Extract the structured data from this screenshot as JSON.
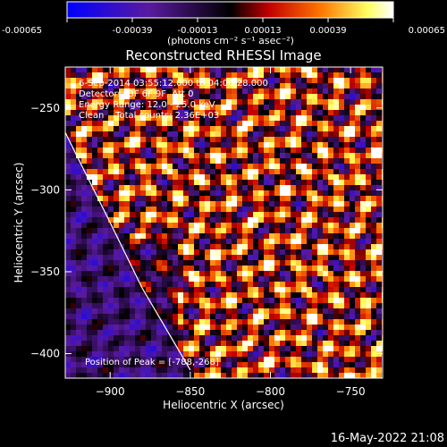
{
  "chart_data": {
    "type": "heatmap",
    "title": "Reconstructed RHESSI Image",
    "xlabel": "Heliocentric X (arcsec)",
    "ylabel": "Heliocentric Y (arcsec)",
    "x_ticks": [
      -900,
      -850,
      -800,
      -750
    ],
    "y_ticks": [
      -250,
      -300,
      -350,
      -400
    ],
    "xlim": [
      -928,
      -730
    ],
    "ylim": [
      -415,
      -225
    ],
    "colorbar": {
      "ticks": [
        "-0.00065",
        "-0.00039",
        "-0.00013",
        "0.00013",
        "0.00039",
        "0.00065"
      ],
      "label": "(photons cm⁻² s⁻¹ asec⁻²)",
      "range": [
        -0.00065,
        0.00065
      ],
      "colors": [
        "#0000ff",
        "#5a1aa0",
        "#000000",
        "#c40000",
        "#ff7800",
        "#ffff60",
        "#ffffff"
      ]
    },
    "annotations": [
      "6-Sep-2014 03:55:12.000 to 04:00:28.000",
      "Detectors: 3F 6F 9F, Att 0",
      "Energy Range: 12.0 - 25.0 keV",
      "Clean    Total counts: 2.36E+03"
    ],
    "peak_text": "Position of Peak = [-788,-268]",
    "peak_position": [
      -788,
      -268
    ],
    "limb_curve": [
      [
        -928,
        -265
      ],
      [
        -900,
        -320
      ],
      [
        -880,
        -360
      ],
      [
        -850,
        -410
      ]
    ]
  },
  "footer": {
    "timestamp": "16-May-2022 21:08"
  }
}
